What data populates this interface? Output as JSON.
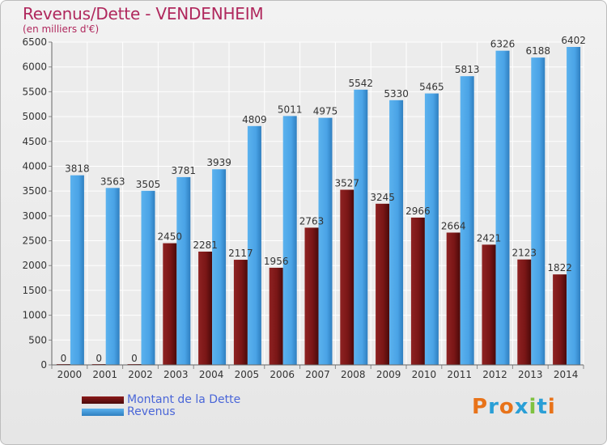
{
  "title": "Revenus/Dette - VENDENHEIM",
  "subtitle": "(en milliers d'€)",
  "colors": {
    "debt": "#8b1a1a",
    "revenue": "#4aa3e6",
    "title": "#b0285d",
    "legend_text": "#4a66d8"
  },
  "logo": {
    "text": "Proxiti",
    "letters": [
      "P",
      "r",
      "o",
      "x",
      "i",
      "t",
      "i"
    ],
    "colors": [
      "#e8731a",
      "#2a9fd6",
      "#e8731a",
      "#2a9fd6",
      "#7fc241",
      "#2a9fd6",
      "#e8731a"
    ]
  },
  "legend": [
    {
      "label": "Montant de la Dette",
      "color": "#6b1010"
    },
    {
      "label": "Revenus",
      "color": "#4aa3e6"
    }
  ],
  "chart_data": {
    "type": "bar",
    "title": "Revenus/Dette - VENDENHEIM",
    "subtitle": "(en milliers d'€)",
    "xlabel": "",
    "ylabel": "",
    "ylim": [
      0,
      6500
    ],
    "yticks": [
      0,
      500,
      1000,
      1500,
      2000,
      2500,
      3000,
      3500,
      4000,
      4500,
      5000,
      5500,
      6000,
      6500
    ],
    "categories": [
      "2000",
      "2001",
      "2002",
      "2003",
      "2004",
      "2005",
      "2006",
      "2007",
      "2008",
      "2009",
      "2010",
      "2011",
      "2012",
      "2013",
      "2014"
    ],
    "series": [
      {
        "name": "Montant de la Dette",
        "values": [
          0,
          0,
          0,
          2450,
          2281,
          2117,
          1956,
          2763,
          3527,
          3245,
          2966,
          2664,
          2421,
          2123,
          1822
        ],
        "labels": [
          "0",
          "0",
          "0",
          "2450",
          "2281",
          "2117",
          "1956",
          "2763",
          "3527",
          "3245",
          "2966",
          "2664",
          "2421",
          "2123",
          "1822"
        ]
      },
      {
        "name": "Revenus",
        "values": [
          3818,
          3563,
          3505,
          3781,
          3939,
          4809,
          5011,
          4975,
          5542,
          5330,
          5465,
          5813,
          6326,
          6188,
          6402
        ],
        "labels": [
          "3818",
          "3563",
          "3505",
          "3781",
          "3939",
          "4809",
          "5011",
          "4975",
          "5542",
          "5330",
          "5465",
          "5813",
          "6326",
          "6188",
          "6402"
        ]
      }
    ],
    "grid": true,
    "legend_position": "bottom-left"
  }
}
